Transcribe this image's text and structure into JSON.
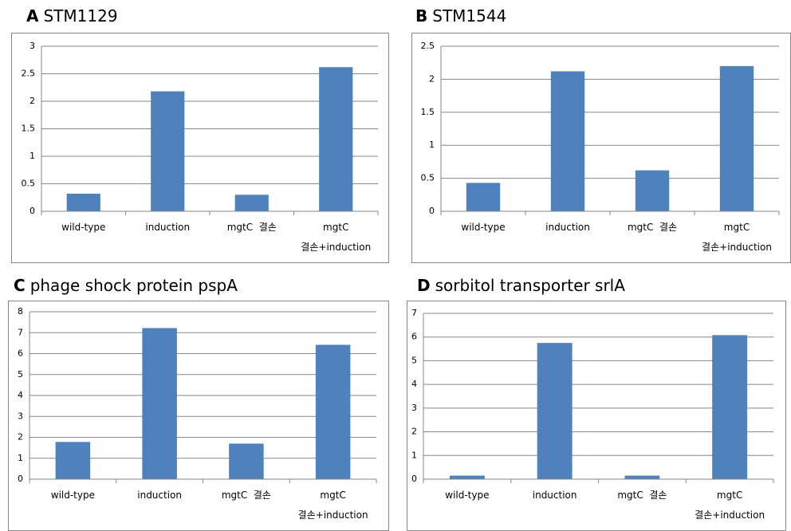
{
  "chart_data": [
    {
      "type": "bar",
      "panel": "A",
      "title": "STM1129",
      "categories": [
        "wild-type",
        "induction",
        "mgtC  결손",
        "mgtC\n결손+induction"
      ],
      "values": [
        0.32,
        2.18,
        0.3,
        2.62
      ],
      "color": "#4f81bd",
      "ylim": [
        0,
        3
      ],
      "yticks": [
        0,
        0.5,
        1,
        1.5,
        2,
        2.5,
        3
      ],
      "grid": true
    },
    {
      "type": "bar",
      "panel": "B",
      "title": "STM1544",
      "categories": [
        "wild-type",
        "induction",
        "mgtC  결손",
        "mgtC\n결손+induction"
      ],
      "values": [
        0.43,
        2.12,
        0.62,
        2.2
      ],
      "color": "#4f81bd",
      "ylim": [
        0,
        2.5
      ],
      "yticks": [
        0,
        0.5,
        1,
        1.5,
        2,
        2.5
      ],
      "grid": true
    },
    {
      "type": "bar",
      "panel": "C",
      "title": "phage shock protein pspA",
      "categories": [
        "wild-type",
        "induction",
        "mgtC  결손",
        "mgtC\n결손+induction"
      ],
      "values": [
        1.78,
        7.22,
        1.7,
        6.42
      ],
      "color": "#4f81bd",
      "ylim": [
        0,
        8
      ],
      "yticks": [
        0,
        1,
        2,
        3,
        4,
        5,
        6,
        7,
        8
      ],
      "grid": true
    },
    {
      "type": "bar",
      "panel": "D",
      "title": "sorbitol transporter srlA",
      "categories": [
        "wild-type",
        "induction",
        "mgtC  결손",
        "mgtC\n결손+induction"
      ],
      "values": [
        0.15,
        5.75,
        0.15,
        6.08
      ],
      "color": "#4f81bd",
      "ylim": [
        0,
        7
      ],
      "yticks": [
        0,
        1,
        2,
        3,
        4,
        5,
        6,
        7
      ],
      "grid": true
    }
  ]
}
